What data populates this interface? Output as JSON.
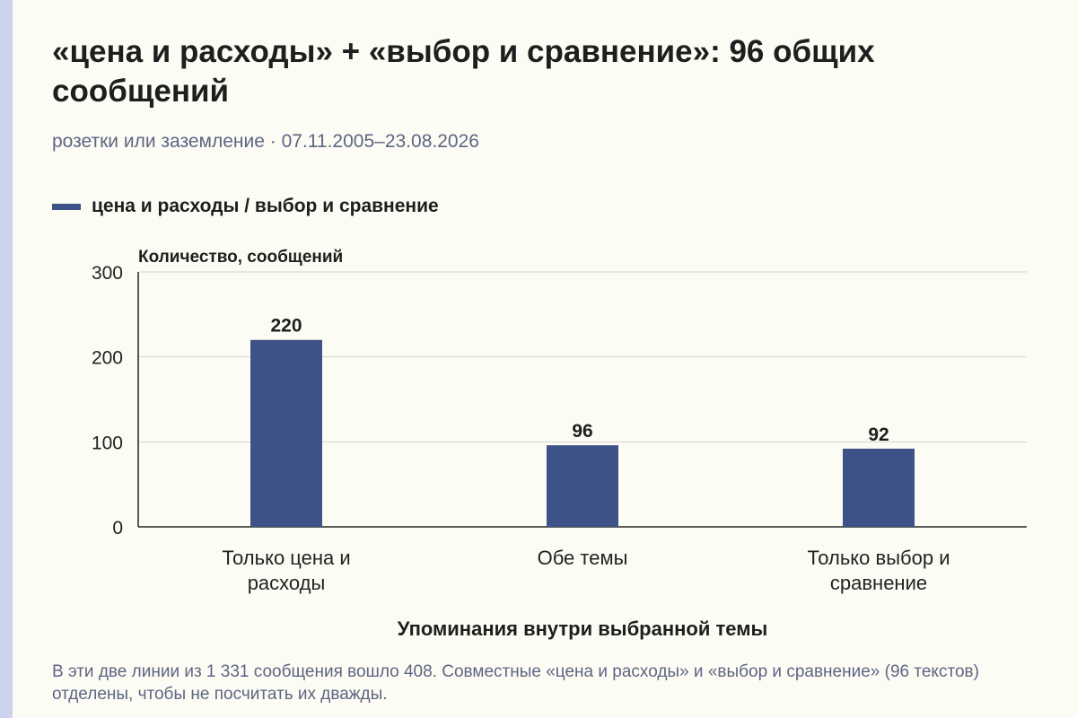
{
  "title": "«цена и расходы» + «выбор и сравнение»: 96 общих сообщений",
  "subtitle": "розетки или заземление · 07.11.2005–23.08.2026",
  "note": "В эти две линии из 1 331 сообщения вошло 408. Совместные «цена и расходы» и «выбор и сравнение» (96 текстов) отделены, чтобы не посчитать их дважды.",
  "colors": {
    "bar": "#3d5287",
    "accent": "#cdd3ec",
    "background": "#fdfcf4",
    "muted_text": "#5d6583"
  },
  "chart_data": {
    "type": "bar",
    "categories": [
      "Только цена и расходы",
      "Обе темы",
      "Только выбор и сравнение"
    ],
    "series": [
      {
        "name": "цена и расходы / выбор и сравнение",
        "values": [
          220,
          96,
          92
        ]
      }
    ],
    "ylabel": "Количество, сообщений",
    "xlabel": "Упоминания внутри выбранной темы",
    "ylim": [
      0,
      300
    ],
    "yticks": [
      0,
      100,
      200,
      300
    ],
    "grid": true,
    "legend": "top-left",
    "data_labels": true
  }
}
